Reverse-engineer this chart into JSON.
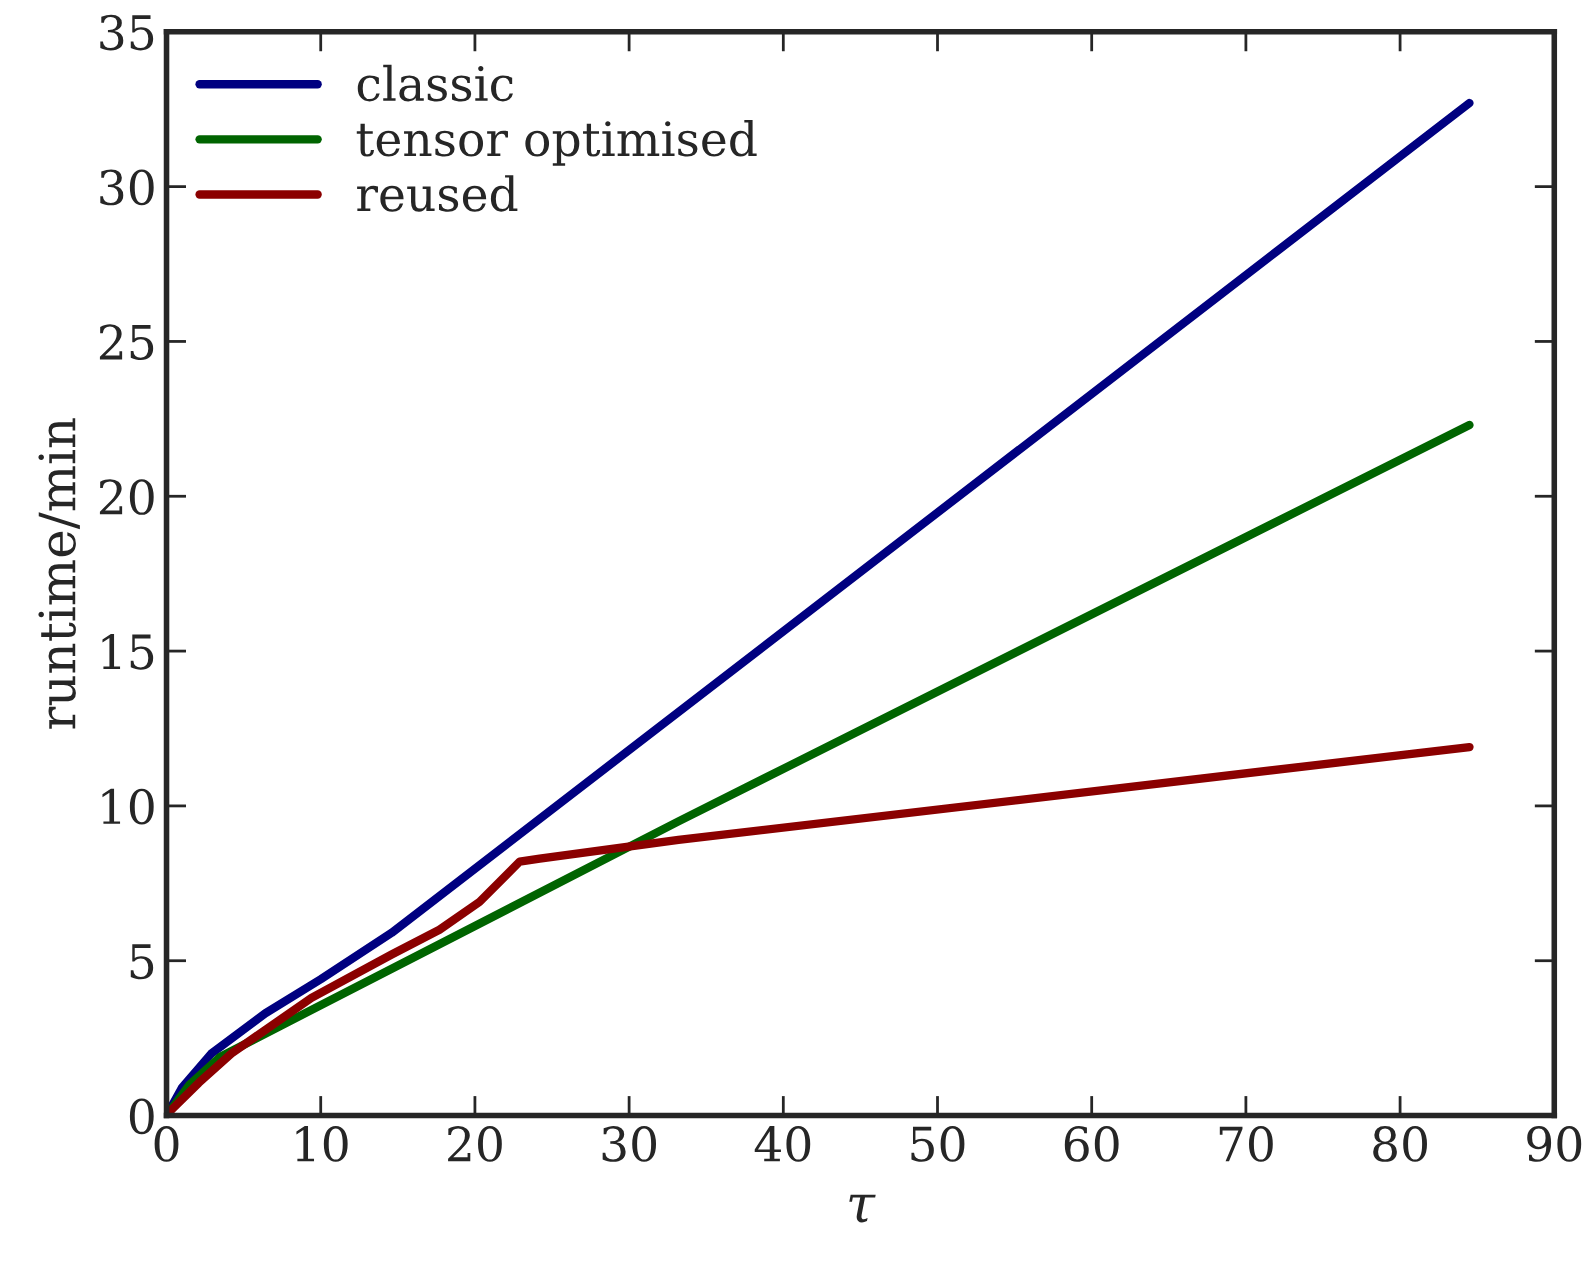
{
  "chart_data": {
    "type": "line",
    "xlabel": "τ",
    "ylabel": "runtime/min",
    "xlim": [
      0,
      90
    ],
    "xticks": [
      0,
      10,
      20,
      30,
      40,
      50,
      60,
      70,
      80,
      90
    ],
    "ylim": [
      0,
      35
    ],
    "yticks": [
      0,
      5,
      10,
      15,
      20,
      25,
      30,
      35
    ],
    "grid": false,
    "legend": "top left",
    "marker": "none",
    "line_style": "solid",
    "series": [
      {
        "name": "classic",
        "color": "#000080",
        "x": [
          0,
          1,
          2.9,
          6.4,
          10,
          14.6,
          84.5
        ],
        "values": [
          0,
          0.9,
          2.0,
          3.3,
          4.4,
          5.9,
          32.7
        ]
      },
      {
        "name": "tensor optimised",
        "color": "#006400",
        "x": [
          0,
          1.5,
          3.5,
          33.2,
          84.5
        ],
        "values": [
          0,
          1.0,
          1.9,
          9.5,
          22.3
        ]
      },
      {
        "name": "reused",
        "color": "#8b0000",
        "x": [
          0,
          0.35,
          2.1,
          4.2,
          9.4,
          14.6,
          17.7,
          20.3,
          22.9,
          24.2,
          33.2,
          84.5
        ],
        "values": [
          0,
          0.2,
          1.06,
          2.0,
          3.8,
          5.2,
          6.0,
          6.9,
          8.2,
          8.3,
          8.9,
          11.9
        ]
      }
    ]
  }
}
